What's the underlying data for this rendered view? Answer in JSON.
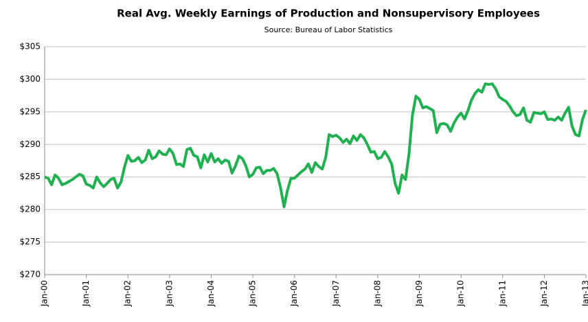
{
  "chart_data": {
    "type": "line",
    "title": "Real Avg. Weekly Earnings of Production and Nonsupervisory Employees",
    "subtitle": "Source: Bureau of Labor Statistics",
    "categories": [
      "Jan-00",
      null,
      null,
      null,
      null,
      null,
      null,
      null,
      null,
      null,
      null,
      null,
      "Jan-01",
      null,
      null,
      null,
      null,
      null,
      null,
      null,
      null,
      null,
      null,
      null,
      "Jan-02",
      null,
      null,
      null,
      null,
      null,
      null,
      null,
      null,
      null,
      null,
      null,
      "Jan-03",
      null,
      null,
      null,
      null,
      null,
      null,
      null,
      null,
      null,
      null,
      null,
      "Jan-04",
      null,
      null,
      null,
      null,
      null,
      null,
      null,
      null,
      null,
      null,
      null,
      "Jan-05",
      null,
      null,
      null,
      null,
      null,
      null,
      null,
      null,
      null,
      null,
      null,
      "Jan-06",
      null,
      null,
      null,
      null,
      null,
      null,
      null,
      null,
      null,
      null,
      null,
      "Jan-07",
      null,
      null,
      null,
      null,
      null,
      null,
      null,
      null,
      null,
      null,
      null,
      "Jan-08",
      null,
      null,
      null,
      null,
      null,
      null,
      null,
      null,
      null,
      null,
      null,
      "Jan-09",
      null,
      null,
      null,
      null,
      null,
      null,
      null,
      null,
      null,
      null,
      null,
      "Jan-10",
      null,
      null,
      null,
      null,
      null,
      null,
      null,
      null,
      null,
      null,
      null,
      "Jan-11",
      null,
      null,
      null,
      null,
      null,
      null,
      null,
      null,
      null,
      null,
      null,
      "Jan-12",
      null,
      null,
      null,
      null,
      null,
      null,
      null,
      null,
      null,
      null,
      null,
      "Jan-13"
    ],
    "values": [
      285,
      284.8,
      283.8,
      285.3,
      284.8,
      283.8,
      284,
      284.3,
      284.6,
      285,
      285.4,
      285.2,
      283.9,
      283.7,
      283.3,
      285,
      284.1,
      283.5,
      284,
      284.6,
      284.8,
      283.3,
      284.2,
      286.5,
      288.3,
      287.4,
      287.5,
      288,
      287.2,
      287.6,
      289.1,
      287.8,
      288.1,
      289,
      288.5,
      288.4,
      289.3,
      288.6,
      286.9,
      287,
      286.6,
      289.2,
      289.4,
      288.3,
      288.1,
      286.4,
      288.4,
      287.3,
      288.6,
      287.3,
      287.8,
      287.1,
      287.6,
      287.4,
      285.6,
      286.7,
      288.2,
      287.8,
      286.7,
      285,
      285.4,
      286.4,
      286.5,
      285.5,
      286,
      286,
      286.3,
      285.5,
      283.3,
      280.4,
      283,
      284.8,
      284.8,
      285.3,
      285.8,
      286.2,
      287,
      285.7,
      287.2,
      286.6,
      286.2,
      288,
      291.5,
      291.2,
      291.4,
      291,
      290.3,
      290.8,
      290.1,
      291.3,
      290.6,
      291.5,
      291,
      290,
      288.8,
      288.9,
      287.8,
      288,
      288.9,
      288.1,
      287,
      284,
      282.5,
      285.3,
      284.6,
      288.5,
      294.5,
      297.4,
      296.9,
      295.6,
      295.8,
      295.5,
      295.2,
      291.8,
      293.1,
      293.2,
      293,
      292,
      293.3,
      294.2,
      294.8,
      293.9,
      295.2,
      296.8,
      297.8,
      298.4,
      298,
      299.3,
      299.2,
      299.3,
      298.5,
      297.3,
      296.9,
      296.6,
      295.9,
      295,
      294.4,
      294.6,
      295.6,
      293.7,
      293.4,
      294.9,
      294.8,
      294.7,
      295,
      293.8,
      293.9,
      293.7,
      294.2,
      293.7,
      294.8,
      295.7,
      292.8,
      291.5,
      291.3,
      293.8,
      295.3
    ],
    "color": "#1fb14f",
    "ylim": [
      270,
      305
    ],
    "yticks": [
      {
        "value": 270,
        "label": "$270"
      },
      {
        "value": 275,
        "label": "$275"
      },
      {
        "value": 280,
        "label": "$280"
      },
      {
        "value": 285,
        "label": "$285"
      },
      {
        "value": 290,
        "label": "$290"
      },
      {
        "value": 295,
        "label": "$295"
      },
      {
        "value": 300,
        "label": "$300"
      },
      {
        "value": 305,
        "label": "$305"
      }
    ],
    "grid": true
  }
}
